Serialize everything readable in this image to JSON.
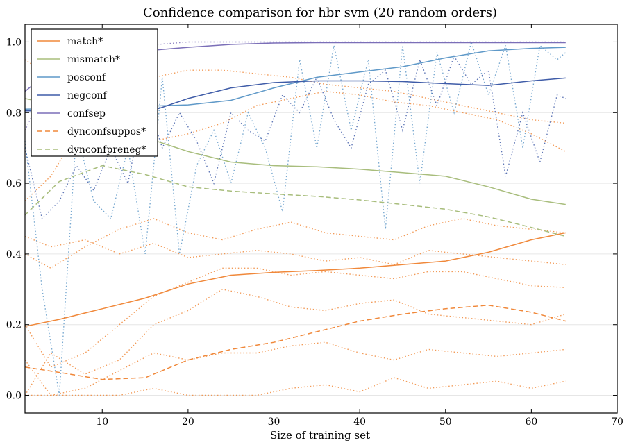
{
  "chart_data": {
    "type": "line",
    "title": "Confidence comparison for hbr svm (20 random orders)",
    "xlabel": "Size of training set",
    "ylabel": "",
    "xlim": [
      1,
      70
    ],
    "ylim": [
      -0.05,
      1.05
    ],
    "xticks": [
      10,
      20,
      30,
      40,
      50,
      60,
      70
    ],
    "yticks": [
      0.0,
      0.2,
      0.4,
      0.6,
      0.8,
      1.0
    ],
    "ytick_labels": [
      "0.0",
      "0.2",
      "0.4",
      "0.6",
      "0.8",
      "1.0"
    ],
    "grid": "horizontal",
    "legend_position": "top-left",
    "series": [
      {
        "name": "match*",
        "color": "#f0883a",
        "style": "solid",
        "x": [
          1,
          5,
          10,
          15,
          20,
          25,
          30,
          35,
          40,
          45,
          50,
          55,
          60,
          64
        ],
        "y": [
          0.195,
          0.215,
          0.245,
          0.275,
          0.315,
          0.34,
          0.348,
          0.353,
          0.36,
          0.37,
          0.38,
          0.405,
          0.44,
          0.46
        ]
      },
      {
        "name": "mismatch*",
        "color": "#a8bd7c",
        "style": "solid",
        "x": [
          1,
          5,
          10,
          15,
          20,
          25,
          30,
          35,
          40,
          45,
          50,
          55,
          60,
          64
        ],
        "y": [
          0.84,
          0.82,
          0.78,
          0.73,
          0.69,
          0.66,
          0.65,
          0.647,
          0.64,
          0.63,
          0.62,
          0.59,
          0.555,
          0.54
        ]
      },
      {
        "name": "posconf",
        "color": "#5f99c8",
        "style": "solid",
        "x": [
          1,
          5,
          10,
          15,
          20,
          25,
          30,
          35,
          40,
          45,
          50,
          55,
          60,
          64
        ],
        "y": [
          0.81,
          0.812,
          0.815,
          0.818,
          0.822,
          0.835,
          0.87,
          0.9,
          0.915,
          0.93,
          0.955,
          0.975,
          0.982,
          0.985
        ]
      },
      {
        "name": "negconf",
        "color": "#3f5ca8",
        "style": "solid",
        "x": [
          1,
          5,
          10,
          15,
          17,
          20,
          25,
          30,
          35,
          40,
          45,
          50,
          55,
          60,
          64
        ],
        "y": [
          0.805,
          0.805,
          0.805,
          0.8,
          0.815,
          0.84,
          0.87,
          0.885,
          0.89,
          0.89,
          0.888,
          0.882,
          0.877,
          0.89,
          0.898
        ]
      },
      {
        "name": "confsep",
        "color": "#7b6fb8",
        "style": "solid",
        "x": [
          1,
          3,
          5,
          8,
          10,
          15,
          20,
          25,
          30,
          35,
          40,
          45,
          50,
          55,
          60,
          64
        ],
        "y": [
          0.86,
          0.9,
          0.93,
          0.96,
          0.97,
          0.975,
          0.985,
          0.993,
          0.997,
          0.998,
          0.998,
          0.998,
          0.998,
          0.998,
          0.998,
          0.998
        ]
      },
      {
        "name": "dynconfsuppos*",
        "color": "#f0883a",
        "style": "dashed",
        "x": [
          1,
          5,
          10,
          15,
          20,
          25,
          30,
          35,
          40,
          45,
          50,
          55,
          60,
          64
        ],
        "y": [
          0.08,
          0.065,
          0.045,
          0.05,
          0.1,
          0.13,
          0.15,
          0.18,
          0.21,
          0.23,
          0.245,
          0.255,
          0.235,
          0.21
        ]
      },
      {
        "name": "dynconfpreneg*",
        "color": "#a8bd7c",
        "style": "dashed",
        "x": [
          1,
          5,
          10,
          15,
          20,
          25,
          30,
          35,
          40,
          45,
          50,
          55,
          60,
          64
        ],
        "y": [
          0.51,
          0.605,
          0.65,
          0.625,
          0.59,
          0.578,
          0.57,
          0.563,
          0.553,
          0.54,
          0.527,
          0.505,
          0.475,
          0.45
        ]
      }
    ],
    "background_series": [
      {
        "color": "#f0883a",
        "style": "dotted",
        "x": [
          1,
          4,
          8,
          12,
          16,
          20,
          24,
          28,
          32,
          36,
          40,
          44,
          48,
          52,
          56,
          60,
          64
        ],
        "y": [
          0.55,
          0.62,
          0.78,
          0.8,
          0.72,
          0.74,
          0.77,
          0.82,
          0.84,
          0.86,
          0.85,
          0.83,
          0.82,
          0.8,
          0.78,
          0.74,
          0.69
        ]
      },
      {
        "color": "#f0883a",
        "style": "dotted",
        "x": [
          1,
          4,
          8,
          12,
          16,
          20,
          24,
          28,
          32,
          36,
          40,
          44,
          48,
          52,
          56,
          60,
          64
        ],
        "y": [
          0.95,
          0.9,
          0.86,
          0.88,
          0.9,
          0.92,
          0.92,
          0.91,
          0.9,
          0.88,
          0.87,
          0.86,
          0.84,
          0.82,
          0.8,
          0.78,
          0.77
        ]
      },
      {
        "color": "#f0883a",
        "style": "dotted",
        "x": [
          1,
          4,
          8,
          12,
          16,
          20,
          24,
          28,
          32,
          36,
          40,
          44,
          48,
          52,
          56,
          60,
          64
        ],
        "y": [
          0.4,
          0.36,
          0.42,
          0.47,
          0.5,
          0.46,
          0.44,
          0.47,
          0.49,
          0.46,
          0.45,
          0.44,
          0.48,
          0.5,
          0.48,
          0.47,
          0.46
        ]
      },
      {
        "color": "#f0883a",
        "style": "dotted",
        "x": [
          1,
          4,
          8,
          12,
          16,
          20,
          24,
          28,
          32,
          36,
          40,
          44,
          48,
          52,
          56,
          60,
          64
        ],
        "y": [
          0.45,
          0.42,
          0.44,
          0.4,
          0.43,
          0.39,
          0.4,
          0.41,
          0.4,
          0.38,
          0.39,
          0.37,
          0.41,
          0.4,
          0.39,
          0.38,
          0.37
        ]
      },
      {
        "color": "#f0883a",
        "style": "dotted",
        "x": [
          1,
          4,
          8,
          12,
          16,
          20,
          24,
          28,
          32,
          36,
          40,
          44,
          48,
          52,
          56,
          60,
          64
        ],
        "y": [
          0.2,
          0.08,
          0.12,
          0.2,
          0.28,
          0.32,
          0.36,
          0.36,
          0.34,
          0.35,
          0.34,
          0.33,
          0.35,
          0.35,
          0.33,
          0.31,
          0.305
        ]
      },
      {
        "color": "#f0883a",
        "style": "dotted",
        "x": [
          1,
          4,
          8,
          12,
          16,
          20,
          24,
          28,
          32,
          36,
          40,
          44,
          48,
          52,
          56,
          60,
          64
        ],
        "y": [
          0.0,
          0.12,
          0.06,
          0.1,
          0.2,
          0.24,
          0.3,
          0.28,
          0.25,
          0.24,
          0.26,
          0.27,
          0.23,
          0.22,
          0.21,
          0.2,
          0.23
        ]
      },
      {
        "color": "#f0883a",
        "style": "dotted",
        "x": [
          1,
          4,
          8,
          12,
          16,
          20,
          24,
          28,
          32,
          36,
          40,
          44,
          48,
          52,
          56,
          60,
          64
        ],
        "y": [
          0.1,
          0.0,
          0.02,
          0.07,
          0.12,
          0.1,
          0.12,
          0.12,
          0.14,
          0.15,
          0.12,
          0.1,
          0.13,
          0.12,
          0.11,
          0.12,
          0.13
        ]
      },
      {
        "color": "#f0883a",
        "style": "dotted",
        "x": [
          1,
          4,
          8,
          12,
          16,
          20,
          24,
          28,
          32,
          36,
          40,
          44,
          48,
          52,
          56,
          60,
          64
        ],
        "y": [
          0.0,
          0.0,
          0.0,
          0.0,
          0.02,
          0.0,
          0.0,
          0.0,
          0.02,
          0.03,
          0.01,
          0.05,
          0.02,
          0.03,
          0.04,
          0.02,
          0.04
        ]
      },
      {
        "color": "#5f99c8",
        "style": "dotted",
        "x": [
          1,
          3,
          5,
          7,
          9,
          11,
          13,
          15,
          17,
          19,
          21,
          23,
          25,
          27,
          29,
          31,
          33,
          35,
          37,
          39,
          41,
          43,
          45,
          47,
          49,
          51,
          53,
          55,
          57,
          59,
          61,
          63,
          64
        ],
        "y": [
          0.72,
          0.3,
          0.0,
          0.75,
          0.55,
          0.5,
          0.7,
          0.4,
          0.9,
          0.4,
          0.65,
          0.75,
          0.6,
          0.8,
          0.7,
          0.52,
          0.95,
          0.7,
          0.99,
          0.75,
          0.95,
          0.47,
          0.99,
          0.6,
          0.97,
          0.8,
          1.0,
          0.85,
          0.99,
          0.7,
          0.99,
          0.95,
          0.97
        ]
      },
      {
        "color": "#3f5ca8",
        "style": "dotted",
        "x": [
          1,
          3,
          5,
          7,
          9,
          11,
          13,
          15,
          17,
          19,
          21,
          23,
          25,
          27,
          29,
          31,
          33,
          35,
          37,
          39,
          41,
          43,
          45,
          47,
          49,
          51,
          53,
          55,
          57,
          59,
          61,
          63,
          64
        ],
        "y": [
          0.7,
          0.5,
          0.55,
          0.65,
          0.58,
          0.7,
          0.6,
          0.85,
          0.7,
          0.8,
          0.72,
          0.6,
          0.8,
          0.75,
          0.72,
          0.85,
          0.8,
          0.9,
          0.78,
          0.7,
          0.88,
          0.92,
          0.75,
          0.95,
          0.82,
          0.96,
          0.88,
          0.92,
          0.62,
          0.8,
          0.66,
          0.85,
          0.84
        ]
      },
      {
        "color": "#7b6fb8",
        "style": "dotted",
        "x": [
          1,
          5,
          10,
          15,
          20,
          25,
          30,
          35,
          40,
          45,
          50,
          55,
          60,
          64
        ],
        "y": [
          0.75,
          0.95,
          0.98,
          0.99,
          1.0,
          1.0,
          1.0,
          1.0,
          1.0,
          1.0,
          1.0,
          1.0,
          1.0,
          1.0
        ]
      }
    ]
  }
}
